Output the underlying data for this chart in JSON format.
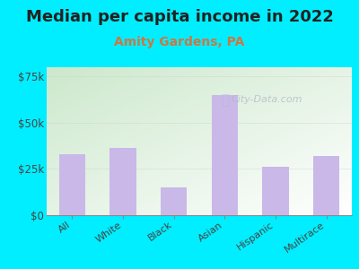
{
  "title": "Median per capita income in 2022",
  "subtitle": "Amity Gardens, PA",
  "categories": [
    "All",
    "White",
    "Black",
    "Asian",
    "Hispanic",
    "Multirace"
  ],
  "values": [
    33000,
    36500,
    15000,
    65000,
    26000,
    32000
  ],
  "bar_color": "#c9b8e8",
  "title_fontsize": 13,
  "subtitle_fontsize": 10,
  "subtitle_color": "#cc7744",
  "title_color": "#222222",
  "tick_label_color": "#444444",
  "background_outer": "#00eeff",
  "chart_bg_top_left": "#cce8cc",
  "chart_bg_bottom_right": "#f8fff8",
  "ylim": [
    0,
    80000
  ],
  "yticks": [
    0,
    25000,
    50000,
    75000
  ],
  "ytick_labels": [
    "$0",
    "$25k",
    "$50k",
    "$75k"
  ],
  "watermark": "City-Data.com",
  "watermark_color": "#b0b8c8"
}
